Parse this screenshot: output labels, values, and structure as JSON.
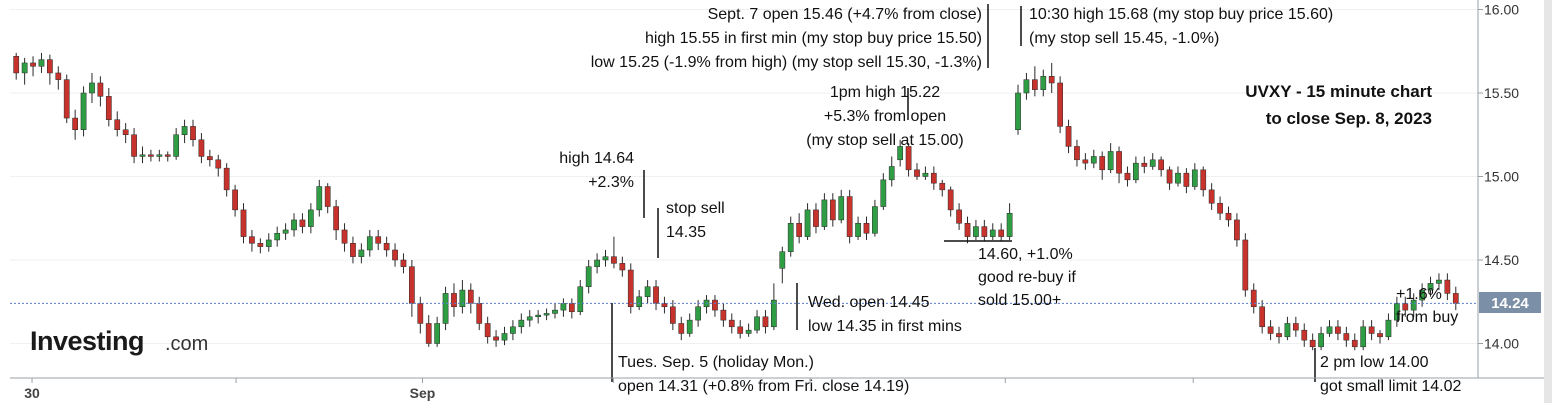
{
  "chart_data": {
    "type": "candlestick",
    "symbol": "UVXY",
    "title_lines": [
      "UVXY - 15 minute chart",
      "to close Sep. 8, 2023"
    ],
    "brand": {
      "name": "Investing",
      "suffix": ".com"
    },
    "ylim": [
      13.8,
      16.0
    ],
    "yticks": [
      16.0,
      15.5,
      15.0,
      14.5,
      14.0
    ],
    "ytick_labels": [
      "16.00",
      "15.50",
      "15.00",
      "14.50",
      "14.00"
    ],
    "last_price": 14.24,
    "last_price_label": "14.24",
    "xtick_labels": [
      {
        "label": "30",
        "pos": 0.015
      },
      {
        "label": "Sep",
        "pos": 0.281
      }
    ],
    "colors": {
      "up": "#2f9d43",
      "down": "#c8322c",
      "wick": "#2a2a2a",
      "reference": "#5a7fd0",
      "label_box": "#7b8fa6"
    },
    "candles": [
      [
        15.72,
        15.62,
        15.74,
        15.58
      ],
      [
        15.62,
        15.68,
        15.71,
        15.55
      ],
      [
        15.68,
        15.66,
        15.72,
        15.6
      ],
      [
        15.66,
        15.7,
        15.74,
        15.62
      ],
      [
        15.7,
        15.62,
        15.73,
        15.55
      ],
      [
        15.62,
        15.58,
        15.66,
        15.52
      ],
      [
        15.58,
        15.35,
        15.61,
        15.32
      ],
      [
        15.35,
        15.28,
        15.4,
        15.22
      ],
      [
        15.28,
        15.5,
        15.54,
        15.24
      ],
      [
        15.5,
        15.56,
        15.62,
        15.44
      ],
      [
        15.56,
        15.48,
        15.6,
        15.42
      ],
      [
        15.48,
        15.34,
        15.53,
        15.3
      ],
      [
        15.34,
        15.28,
        15.39,
        15.24
      ],
      [
        15.28,
        15.25,
        15.32,
        15.2
      ],
      [
        15.25,
        15.12,
        15.29,
        15.08
      ],
      [
        15.12,
        15.13,
        15.18,
        15.08
      ],
      [
        15.13,
        15.12,
        15.16,
        15.09
      ],
      [
        15.12,
        15.13,
        15.16,
        15.09
      ],
      [
        15.13,
        15.12,
        15.15,
        15.09
      ],
      [
        15.12,
        15.25,
        15.29,
        15.1
      ],
      [
        15.25,
        15.3,
        15.34,
        15.2
      ],
      [
        15.3,
        15.22,
        15.34,
        15.18
      ],
      [
        15.22,
        15.12,
        15.26,
        15.08
      ],
      [
        15.12,
        15.1,
        15.16,
        15.06
      ],
      [
        15.1,
        15.05,
        15.13,
        15.0
      ],
      [
        15.05,
        14.92,
        15.08,
        14.88
      ],
      [
        14.92,
        14.8,
        14.95,
        14.76
      ],
      [
        14.8,
        14.64,
        14.84,
        14.6
      ],
      [
        14.64,
        14.6,
        14.68,
        14.55
      ],
      [
        14.6,
        14.58,
        14.63,
        14.54
      ],
      [
        14.58,
        14.62,
        14.66,
        14.55
      ],
      [
        14.62,
        14.66,
        14.7,
        14.58
      ],
      [
        14.66,
        14.68,
        14.72,
        14.62
      ],
      [
        14.68,
        14.74,
        14.78,
        14.64
      ],
      [
        14.74,
        14.7,
        14.78,
        14.66
      ],
      [
        14.7,
        14.8,
        14.84,
        14.66
      ],
      [
        14.8,
        14.94,
        14.98,
        14.76
      ],
      [
        14.94,
        14.82,
        14.96,
        14.78
      ],
      [
        14.82,
        14.68,
        14.86,
        14.62
      ],
      [
        14.68,
        14.6,
        14.72,
        14.55
      ],
      [
        14.6,
        14.52,
        14.64,
        14.48
      ],
      [
        14.52,
        14.56,
        14.6,
        14.48
      ],
      [
        14.56,
        14.64,
        14.68,
        14.52
      ],
      [
        14.64,
        14.6,
        14.68,
        14.56
      ],
      [
        14.6,
        14.56,
        14.64,
        14.52
      ],
      [
        14.56,
        14.5,
        14.6,
        14.46
      ],
      [
        14.5,
        14.46,
        14.54,
        14.42
      ],
      [
        14.46,
        14.24,
        14.5,
        14.16
      ],
      [
        14.24,
        14.12,
        14.28,
        14.06
      ],
      [
        14.12,
        14.0,
        14.17,
        13.98
      ],
      [
        14.0,
        14.12,
        14.16,
        13.98
      ],
      [
        14.12,
        14.3,
        14.34,
        14.08
      ],
      [
        14.3,
        14.22,
        14.36,
        14.16
      ],
      [
        14.22,
        14.32,
        14.38,
        14.18
      ],
      [
        14.32,
        14.24,
        14.36,
        14.18
      ],
      [
        14.24,
        14.12,
        14.28,
        14.08
      ],
      [
        14.12,
        14.04,
        14.16,
        14.0
      ],
      [
        14.04,
        14.02,
        14.08,
        13.98
      ],
      [
        14.02,
        14.06,
        14.1,
        13.99
      ],
      [
        14.06,
        14.1,
        14.14,
        14.02
      ],
      [
        14.1,
        14.14,
        14.18,
        14.06
      ],
      [
        14.14,
        14.16,
        14.2,
        14.1
      ],
      [
        14.16,
        14.17,
        14.2,
        14.12
      ],
      [
        14.17,
        14.18,
        14.21,
        14.14
      ],
      [
        14.18,
        14.2,
        14.24,
        14.15
      ],
      [
        14.2,
        14.24,
        14.27,
        14.16
      ],
      [
        14.24,
        14.19,
        14.27,
        14.15
      ],
      [
        14.19,
        14.34,
        14.38,
        14.17
      ],
      [
        14.34,
        14.46,
        14.5,
        14.3
      ],
      [
        14.46,
        14.5,
        14.54,
        14.42
      ],
      [
        14.5,
        14.52,
        14.56,
        14.46
      ],
      [
        14.52,
        14.48,
        14.64,
        14.45
      ],
      [
        14.48,
        14.44,
        14.52,
        14.4
      ],
      [
        14.44,
        14.22,
        14.48,
        14.18
      ],
      [
        14.22,
        14.28,
        14.32,
        14.2
      ],
      [
        14.28,
        14.34,
        14.38,
        14.24
      ],
      [
        14.34,
        14.24,
        14.38,
        14.2
      ],
      [
        14.24,
        14.22,
        14.28,
        14.18
      ],
      [
        14.22,
        14.12,
        14.26,
        14.08
      ],
      [
        14.12,
        14.06,
        14.16,
        14.02
      ],
      [
        14.06,
        14.14,
        14.18,
        14.04
      ],
      [
        14.14,
        14.22,
        14.26,
        14.1
      ],
      [
        14.22,
        14.26,
        14.29,
        14.18
      ],
      [
        14.26,
        14.2,
        14.29,
        14.16
      ],
      [
        14.2,
        14.14,
        14.24,
        14.1
      ],
      [
        14.14,
        14.1,
        14.18,
        14.06
      ],
      [
        14.1,
        14.06,
        14.14,
        14.03
      ],
      [
        14.06,
        14.08,
        14.12,
        14.04
      ],
      [
        14.08,
        14.16,
        14.2,
        14.06
      ],
      [
        14.16,
        14.1,
        14.2,
        14.06
      ],
      [
        14.1,
        14.26,
        14.36,
        14.08
      ],
      [
        14.45,
        14.55,
        14.58,
        14.36
      ],
      [
        14.55,
        14.72,
        14.76,
        14.52
      ],
      [
        14.72,
        14.64,
        14.78,
        14.6
      ],
      [
        14.64,
        14.8,
        14.84,
        14.62
      ],
      [
        14.8,
        14.7,
        14.84,
        14.66
      ],
      [
        14.7,
        14.86,
        14.9,
        14.68
      ],
      [
        14.86,
        14.74,
        14.9,
        14.7
      ],
      [
        14.74,
        14.88,
        14.92,
        14.72
      ],
      [
        14.88,
        14.64,
        14.92,
        14.6
      ],
      [
        14.64,
        14.72,
        14.76,
        14.62
      ],
      [
        14.72,
        14.66,
        14.76,
        14.62
      ],
      [
        14.66,
        14.82,
        14.86,
        14.64
      ],
      [
        14.82,
        14.98,
        15.02,
        14.8
      ],
      [
        14.98,
        15.06,
        15.12,
        14.94
      ],
      [
        15.1,
        15.18,
        15.22,
        15.06
      ],
      [
        15.18,
        15.04,
        15.2,
        15.0
      ],
      [
        15.04,
        15.0,
        15.08,
        14.98
      ],
      [
        15.0,
        15.02,
        15.06,
        14.98
      ],
      [
        15.02,
        14.96,
        15.06,
        14.92
      ],
      [
        14.96,
        14.92,
        14.98,
        14.88
      ],
      [
        14.92,
        14.8,
        14.94,
        14.76
      ],
      [
        14.8,
        14.72,
        14.84,
        14.68
      ],
      [
        14.72,
        14.64,
        14.76,
        14.6
      ],
      [
        14.64,
        14.7,
        14.74,
        14.62
      ],
      [
        14.7,
        14.64,
        14.74,
        14.61
      ],
      [
        14.64,
        14.68,
        14.72,
        14.62
      ],
      [
        14.68,
        14.64,
        14.72,
        14.61
      ],
      [
        14.64,
        14.78,
        14.84,
        14.62
      ],
      [
        15.28,
        15.5,
        15.55,
        15.25
      ],
      [
        15.5,
        15.58,
        15.62,
        15.46
      ],
      [
        15.58,
        15.52,
        15.66,
        15.48
      ],
      [
        15.52,
        15.6,
        15.64,
        15.48
      ],
      [
        15.6,
        15.56,
        15.68,
        15.5
      ],
      [
        15.56,
        15.3,
        15.6,
        15.26
      ],
      [
        15.3,
        15.18,
        15.34,
        15.14
      ],
      [
        15.18,
        15.1,
        15.22,
        15.06
      ],
      [
        15.1,
        15.08,
        15.14,
        15.04
      ],
      [
        15.08,
        15.12,
        15.16,
        15.05
      ],
      [
        15.12,
        15.04,
        15.15,
        14.98
      ],
      [
        15.04,
        15.15,
        15.2,
        15.02
      ],
      [
        15.15,
        15.02,
        15.18,
        14.96
      ],
      [
        15.02,
        14.98,
        15.06,
        14.94
      ],
      [
        14.98,
        15.08,
        15.12,
        14.96
      ],
      [
        15.08,
        15.06,
        15.12,
        15.02
      ],
      [
        15.06,
        15.1,
        15.14,
        15.04
      ],
      [
        15.1,
        15.04,
        15.12,
        15.0
      ],
      [
        15.04,
        14.96,
        15.06,
        14.92
      ],
      [
        14.96,
        15.02,
        15.06,
        14.94
      ],
      [
        15.02,
        14.94,
        15.05,
        14.9
      ],
      [
        14.94,
        15.04,
        15.08,
        14.92
      ],
      [
        15.04,
        14.92,
        15.06,
        14.88
      ],
      [
        14.92,
        14.84,
        14.96,
        14.8
      ],
      [
        14.84,
        14.78,
        14.88,
        14.74
      ],
      [
        14.78,
        14.74,
        14.82,
        14.7
      ],
      [
        14.74,
        14.62,
        14.78,
        14.58
      ],
      [
        14.62,
        14.32,
        14.66,
        14.28
      ],
      [
        14.32,
        14.22,
        14.36,
        14.18
      ],
      [
        14.22,
        14.1,
        14.26,
        14.06
      ],
      [
        14.1,
        14.06,
        14.14,
        14.02
      ],
      [
        14.06,
        14.04,
        14.1,
        14.0
      ],
      [
        14.04,
        14.12,
        14.16,
        14.02
      ],
      [
        14.12,
        14.08,
        14.16,
        14.04
      ],
      [
        14.08,
        14.02,
        14.12,
        13.98
      ],
      [
        14.02,
        13.98,
        14.06,
        13.96
      ],
      [
        13.98,
        14.06,
        14.1,
        13.96
      ],
      [
        14.06,
        14.1,
        14.14,
        14.04
      ],
      [
        14.1,
        14.06,
        14.14,
        14.02
      ],
      [
        14.06,
        14.02,
        14.1,
        13.98
      ],
      [
        14.02,
        13.98,
        14.06,
        13.96
      ],
      [
        13.98,
        14.1,
        14.14,
        13.96
      ],
      [
        14.1,
        14.06,
        14.14,
        14.02
      ],
      [
        14.06,
        14.04,
        14.08,
        14.0
      ],
      [
        14.04,
        14.14,
        14.18,
        14.02
      ],
      [
        14.14,
        14.24,
        14.28,
        14.1
      ],
      [
        14.24,
        14.2,
        14.28,
        14.16
      ],
      [
        14.2,
        14.26,
        14.3,
        14.16
      ],
      [
        14.26,
        14.32,
        14.36,
        14.22
      ],
      [
        14.32,
        14.36,
        14.4,
        14.28
      ],
      [
        14.36,
        14.38,
        14.42,
        14.32
      ],
      [
        14.38,
        14.3,
        14.42,
        14.26
      ],
      [
        14.3,
        14.24,
        14.34,
        14.2
      ]
    ],
    "annotations": [
      {
        "lines": [
          "Sept. 7 open 15.46 (+4.7% from close)",
          "high 15.55 in first min (my stop buy price 15.50)",
          "low 15.25 (-1.9% from high) (my stop sell 15.30, -1.3%)"
        ],
        "align": "end"
      },
      {
        "lines": [
          "10:30 high 15.68 (my stop buy price 15.60)",
          "(my stop sell 15.45, -1.0%)"
        ],
        "align": "start"
      },
      {
        "lines": [
          "1pm high 15.22",
          "+5.3% from open",
          "(my stop sell at 15.00)"
        ],
        "align": "middle"
      },
      {
        "lines": [
          "high 14.64",
          "+2.3%"
        ],
        "align": "end"
      },
      {
        "lines": [
          "stop sell",
          "14.35"
        ],
        "align": "start"
      },
      {
        "lines": [
          "14.60, +1.0%",
          "good re-buy if",
          "sold 15.00+"
        ],
        "align": "start"
      },
      {
        "lines": [
          "Wed. open 14.45",
          "low 14.35 in first mins"
        ],
        "align": "start"
      },
      {
        "lines": [
          "Tues. Sep. 5 (holiday Mon.)",
          "open 14.31 (+0.8% from Fri. close 14.19)"
        ],
        "align": "start"
      },
      {
        "lines": [
          "+1.6%",
          "from buy"
        ],
        "align": "start"
      },
      {
        "lines": [
          "2 pm low 14.00",
          "got small limit 14.02"
        ],
        "align": "start"
      }
    ]
  }
}
